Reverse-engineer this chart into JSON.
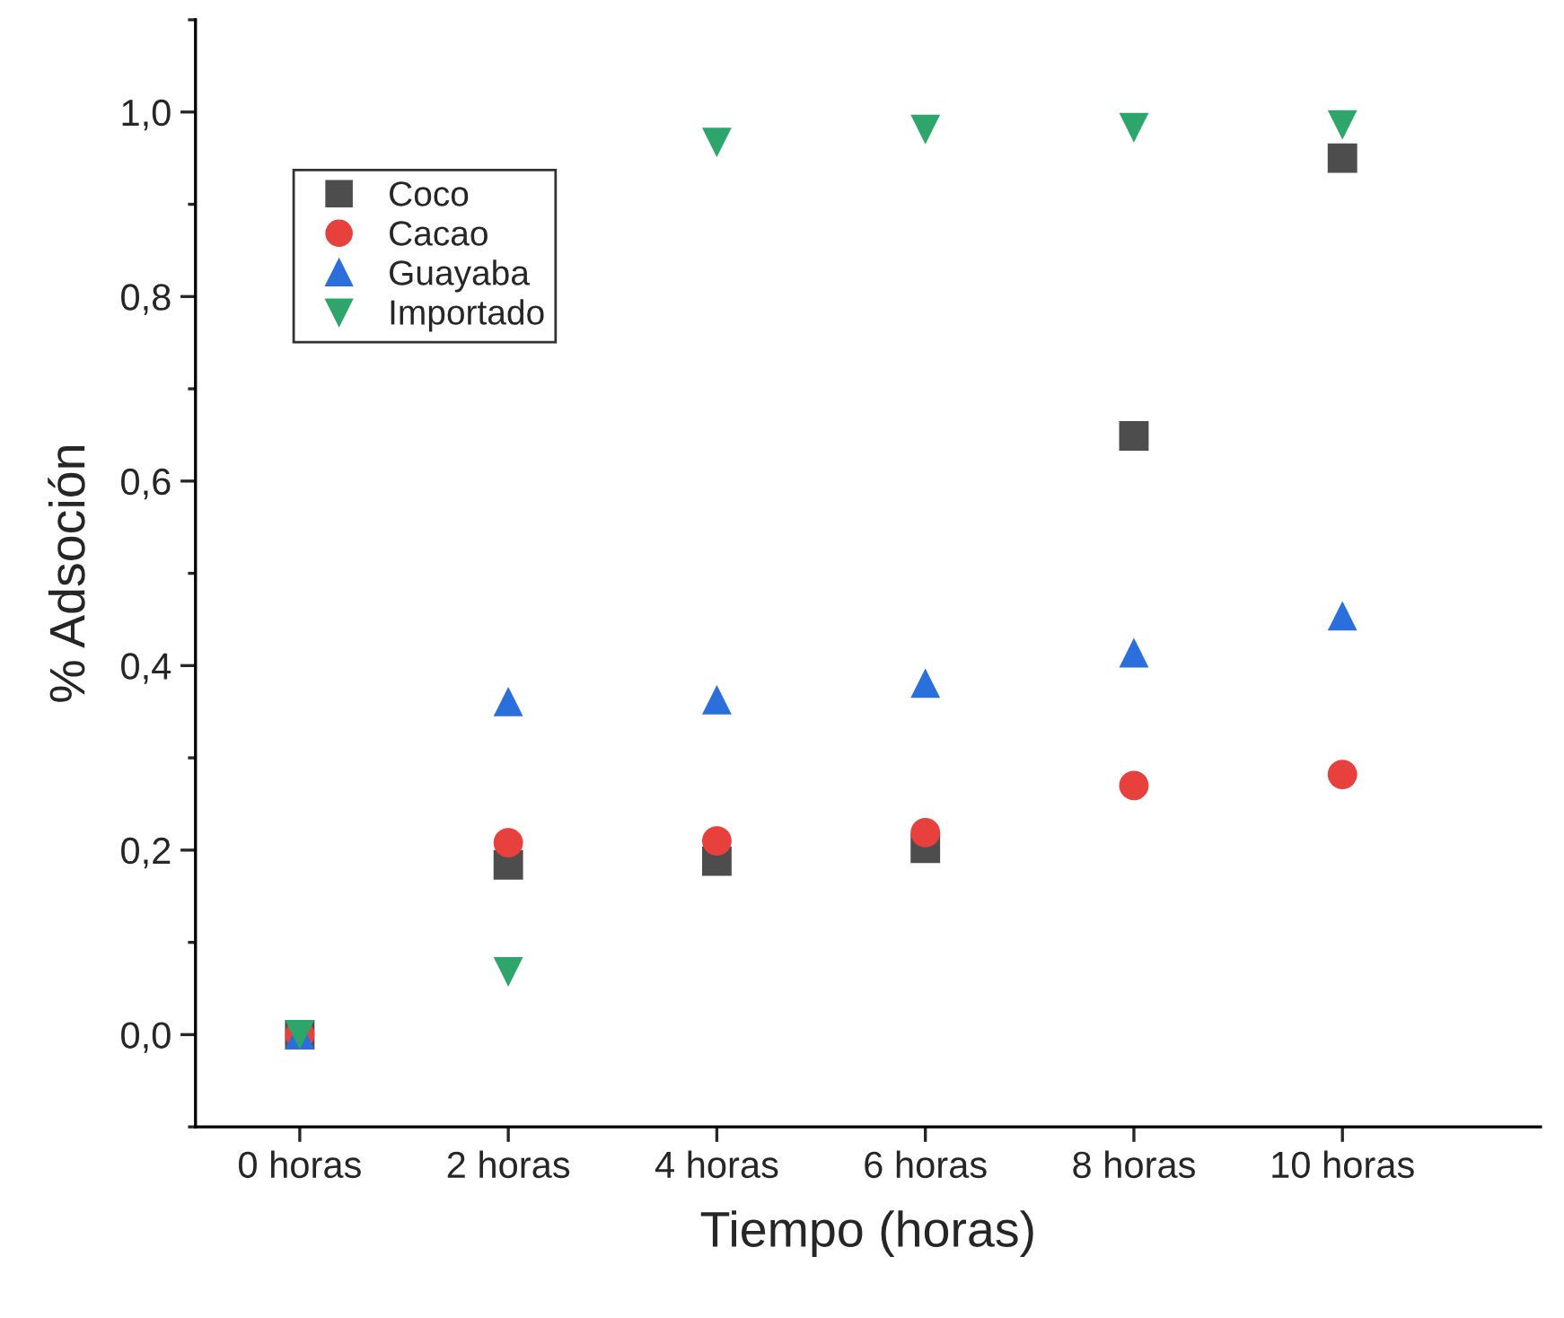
{
  "chart_data": {
    "type": "scatter",
    "xlabel": "Tiempo (horas)",
    "ylabel": "% Adsoción",
    "categories": [
      "0 horas",
      "2 horas",
      "4 horas",
      "6 horas",
      "8 horas",
      "10 horas"
    ],
    "series": [
      {
        "name": "Coco",
        "color": "#4d4d4d",
        "marker": "square",
        "values": [
          0.0,
          0.184,
          0.188,
          0.202,
          0.649,
          0.95
        ]
      },
      {
        "name": "Cacao",
        "color": "#e8403d",
        "marker": "circle",
        "values": [
          0.0,
          0.208,
          0.21,
          0.219,
          0.27,
          0.282
        ]
      },
      {
        "name": "Guayaba",
        "color": "#2a6fdb",
        "marker": "triangle",
        "values": [
          0.0,
          0.361,
          0.363,
          0.381,
          0.414,
          0.454
        ]
      },
      {
        "name": "Importado",
        "color": "#2ea66b",
        "marker": "triangle_down",
        "values": [
          0.0,
          0.068,
          0.967,
          0.981,
          0.983,
          0.986
        ]
      }
    ],
    "ylim": [
      -0.1,
      1.1
    ],
    "yticks": [
      {
        "value": -0.1,
        "label": null
      },
      {
        "value": 0.0,
        "label": "0,0"
      },
      {
        "value": 0.1,
        "label": null
      },
      {
        "value": 0.2,
        "label": "0,2"
      },
      {
        "value": 0.3,
        "label": null
      },
      {
        "value": 0.4,
        "label": "0,4"
      },
      {
        "value": 0.5,
        "label": null
      },
      {
        "value": 0.6,
        "label": "0,6"
      },
      {
        "value": 0.7,
        "label": null
      },
      {
        "value": 0.8,
        "label": "0,8"
      },
      {
        "value": 0.9,
        "label": null
      },
      {
        "value": 1.0,
        "label": "1,0"
      },
      {
        "value": 1.1,
        "label": null
      }
    ],
    "grid": false,
    "legend": "top left"
  }
}
